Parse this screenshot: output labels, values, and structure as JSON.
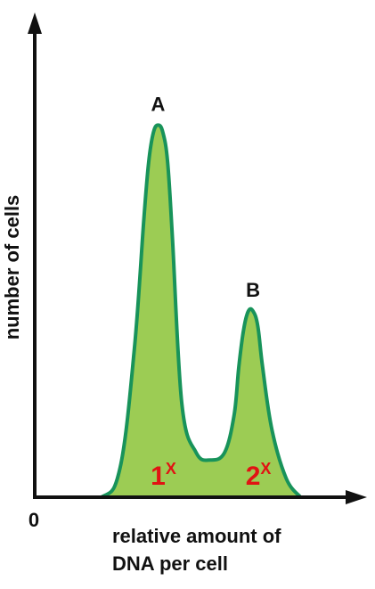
{
  "chart_data": {
    "type": "area",
    "title": "",
    "xlabel_lines": [
      "relative amount of",
      "DNA per cell"
    ],
    "ylabel": "number of cells",
    "origin_label": "0",
    "x": [
      0.0,
      0.4,
      0.6,
      0.75,
      0.85,
      0.9,
      0.95,
      1.0,
      1.05,
      1.1,
      1.15,
      1.25,
      1.4,
      1.55,
      1.7,
      1.8,
      1.85,
      1.9,
      1.95,
      2.0,
      2.05,
      2.1,
      2.2,
      2.35,
      2.5
    ],
    "y": [
      0,
      0,
      8,
      40,
      75,
      90,
      98,
      100,
      98,
      90,
      70,
      25,
      12,
      10,
      12,
      22,
      35,
      45,
      50,
      50,
      46,
      35,
      18,
      5,
      0
    ],
    "xlim": [
      -0.3,
      3.2
    ],
    "ylim": [
      0,
      125
    ],
    "peaks": [
      {
        "label": "A",
        "x": 1.0,
        "y": 100
      },
      {
        "label": "B",
        "x": 2.0,
        "y": 50
      }
    ],
    "regions": [
      {
        "main": "1",
        "sup": "X",
        "x": 1.0
      },
      {
        "main": "2",
        "sup": "X",
        "x": 2.0
      }
    ],
    "colors": {
      "fill": "#9ccc54",
      "stroke": "#18935a",
      "axis": "#111111",
      "region_text": "#e11313"
    }
  }
}
